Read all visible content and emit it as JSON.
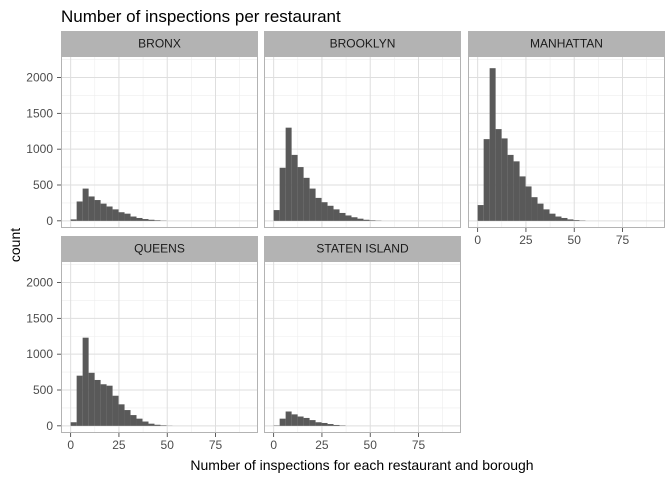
{
  "chart_data": {
    "type": "histogram",
    "title": "Number of inspections per restaurant",
    "xlabel": "Number of inspections for each restaurant and borough",
    "ylabel": "count",
    "xlim": [
      -5,
      97
    ],
    "ylim": [
      -100,
      2300
    ],
    "x_ticks": [
      0,
      25,
      50,
      75
    ],
    "x_tick_labels": [
      "0",
      "25",
      "50",
      "75"
    ],
    "y_ticks": [
      0,
      500,
      1000,
      1500,
      2000
    ],
    "y_tick_labels": [
      "0",
      "500",
      "1000",
      "1500",
      "2000"
    ],
    "bin_width": 3.1,
    "bin_start": 0,
    "colors": {
      "bar": "#595959",
      "strip": "#b3b3b3",
      "strip_text": "#1a1a1a",
      "panel_border": "#b3b3b3",
      "grid_major": "#dedede",
      "grid_minor": "#ededed",
      "tick_text": "#4d4d4d"
    },
    "facets": [
      {
        "name": "BRONX",
        "counts": [
          20,
          270,
          450,
          340,
          290,
          240,
          200,
          160,
          120,
          100,
          60,
          40,
          25,
          15,
          8,
          3
        ]
      },
      {
        "name": "BROOKLYN",
        "counts": [
          150,
          740,
          1300,
          920,
          750,
          600,
          450,
          320,
          260,
          210,
          160,
          110,
          75,
          50,
          30,
          15,
          7,
          3
        ]
      },
      {
        "name": "MANHATTAN",
        "counts": [
          220,
          1140,
          2130,
          1280,
          1150,
          920,
          830,
          620,
          480,
          330,
          240,
          160,
          100,
          60,
          40,
          20,
          10,
          4
        ]
      },
      {
        "name": "QUEENS",
        "counts": [
          50,
          700,
          1230,
          740,
          640,
          580,
          560,
          420,
          300,
          220,
          150,
          100,
          60,
          30,
          15,
          7,
          2
        ]
      },
      {
        "name": "STATEN ISLAND",
        "counts": [
          5,
          100,
          200,
          160,
          130,
          110,
          80,
          50,
          40,
          25,
          12,
          5
        ]
      }
    ]
  }
}
